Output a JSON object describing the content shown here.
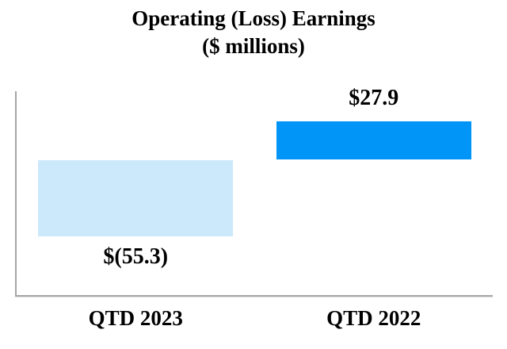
{
  "chart": {
    "title": "Operating (Loss) Earnings",
    "subtitle": "($ millions)"
  },
  "chart_data": {
    "type": "bar",
    "title": "Operating (Loss) Earnings",
    "subtitle": "($ millions)",
    "categories": [
      "QTD 2023",
      "QTD 2022"
    ],
    "values": [
      -55.3,
      27.9
    ],
    "data_labels": [
      "$(55.3)",
      "$27.9"
    ],
    "xlabel": "",
    "ylabel": "",
    "ylim": [
      -65,
      40
    ],
    "grid": false,
    "legend": false,
    "bar_colors": [
      "#cce9fc",
      "#0095f7"
    ],
    "axis_color": "#a6a6a6",
    "text_color": "#000000",
    "background_color": "#ffffff"
  }
}
